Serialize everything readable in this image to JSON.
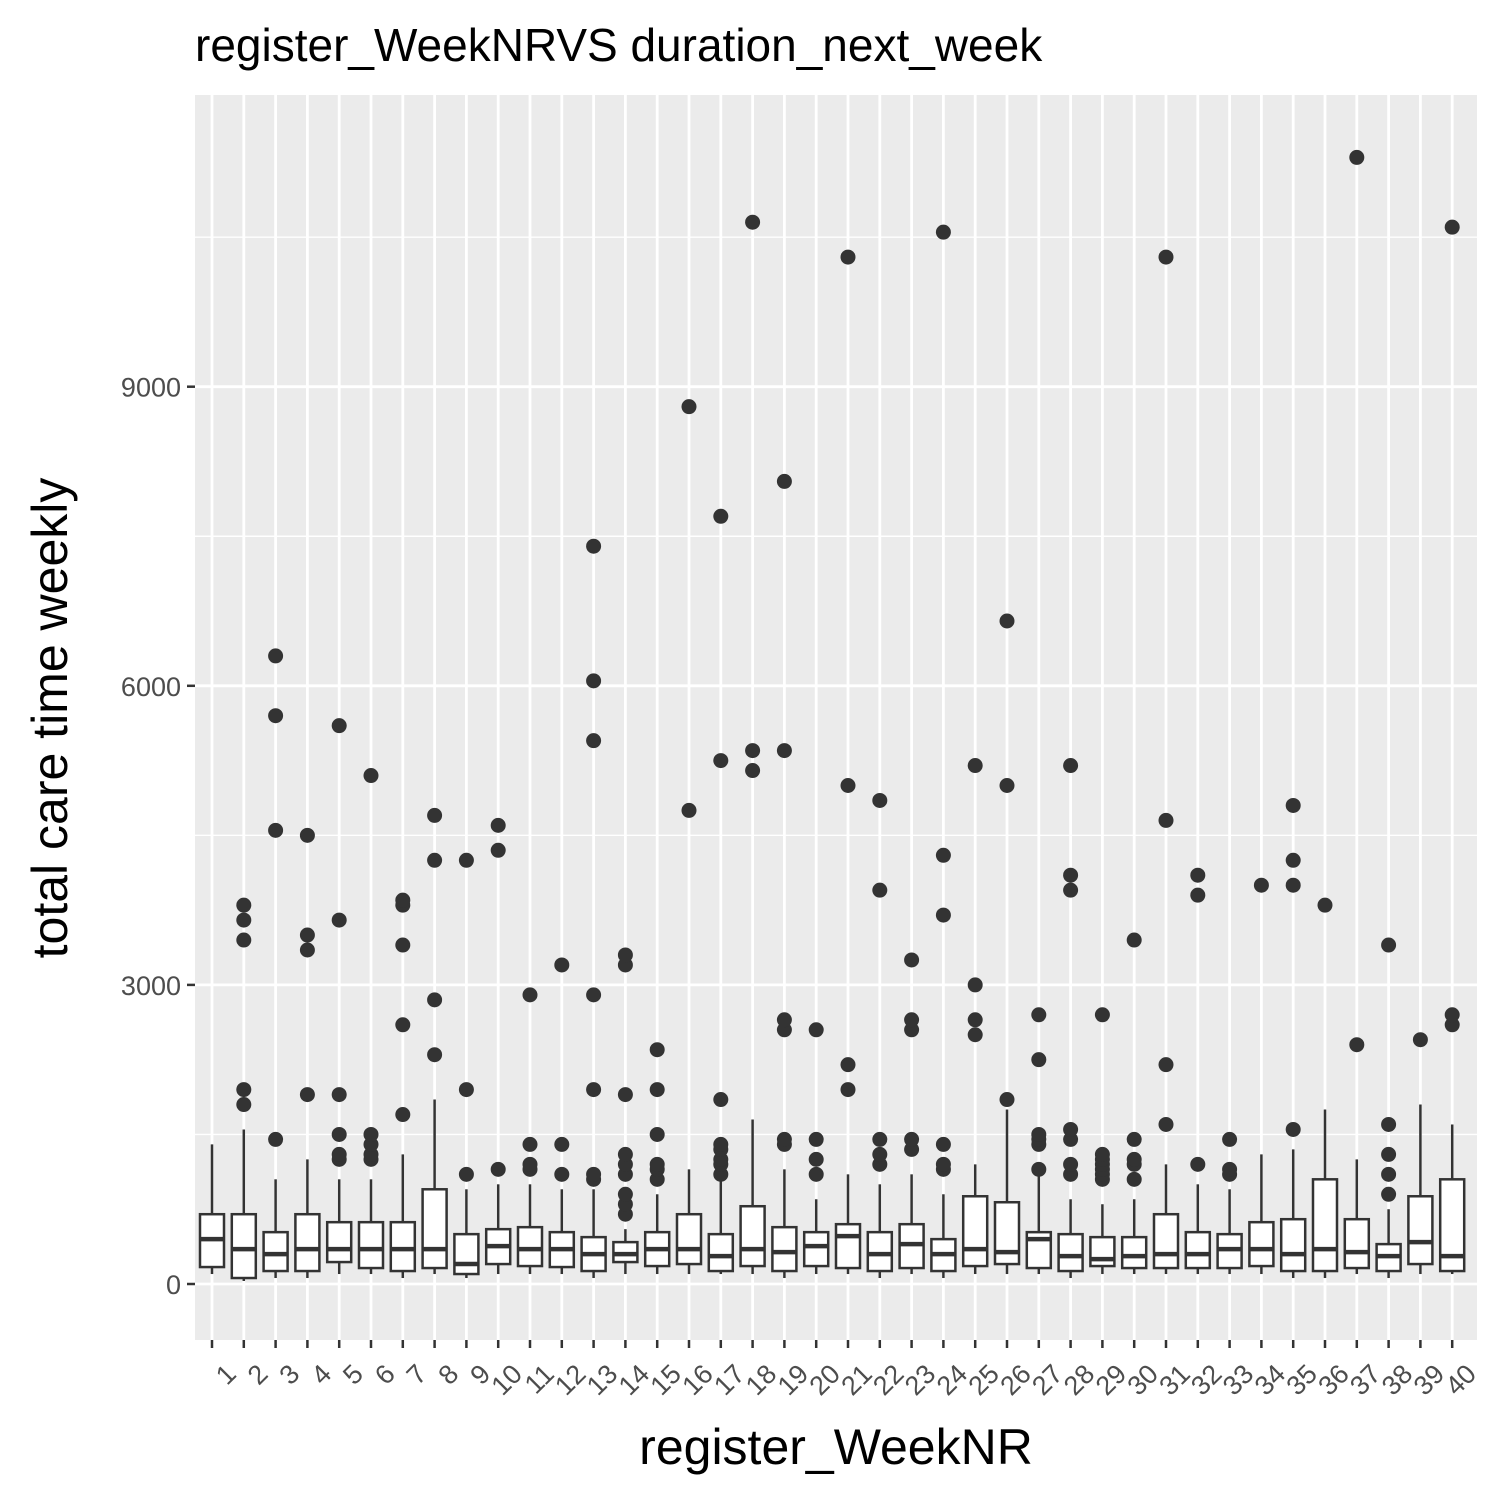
{
  "chart_data": {
    "type": "boxplot",
    "title": "register_WeekNRVS duration_next_week",
    "xlabel": "register_WeekNR",
    "ylabel": "total care time weekly",
    "ylim": [
      -520,
      11950
    ],
    "yticks": [
      0,
      3000,
      6000,
      9000
    ],
    "grid": true,
    "categories": [
      "1",
      "2",
      "3",
      "4",
      "5",
      "6",
      "7",
      "8",
      "9",
      "10",
      "11",
      "12",
      "13",
      "14",
      "15",
      "16",
      "17",
      "18",
      "19",
      "20",
      "21",
      "22",
      "23",
      "24",
      "25",
      "26",
      "27",
      "28",
      "29",
      "30",
      "31",
      "32",
      "33",
      "34",
      "35",
      "36",
      "37",
      "38",
      "39",
      "40"
    ],
    "boxes": [
      {
        "min": 100,
        "q1": 170,
        "median": 450,
        "q3": 700,
        "max": 1400,
        "outliers": []
      },
      {
        "min": 30,
        "q1": 60,
        "median": 350,
        "q3": 700,
        "max": 1550,
        "outliers": [
          1800,
          1950,
          3450,
          3650,
          3800
        ]
      },
      {
        "min": 60,
        "q1": 130,
        "median": 300,
        "q3": 520,
        "max": 1050,
        "outliers": [
          1450,
          4550,
          5700,
          6300
        ]
      },
      {
        "min": 60,
        "q1": 130,
        "median": 350,
        "q3": 700,
        "max": 1250,
        "outliers": [
          1900,
          3350,
          3500,
          4500
        ]
      },
      {
        "min": 100,
        "q1": 220,
        "median": 350,
        "q3": 620,
        "max": 1050,
        "outliers": [
          1250,
          1300,
          1500,
          1900,
          3650,
          5600
        ]
      },
      {
        "min": 100,
        "q1": 160,
        "median": 350,
        "q3": 620,
        "max": 1050,
        "outliers": [
          1250,
          1300,
          1400,
          1500,
          5100
        ]
      },
      {
        "min": 60,
        "q1": 130,
        "median": 350,
        "q3": 620,
        "max": 1300,
        "outliers": [
          1700,
          2600,
          3400,
          3800,
          3850
        ]
      },
      {
        "min": 100,
        "q1": 160,
        "median": 350,
        "q3": 950,
        "max": 1850,
        "outliers": [
          2300,
          2850,
          4250,
          4700
        ]
      },
      {
        "min": 60,
        "q1": 100,
        "median": 200,
        "q3": 500,
        "max": 950,
        "outliers": [
          1100,
          1950,
          4250
        ]
      },
      {
        "min": 100,
        "q1": 200,
        "median": 380,
        "q3": 550,
        "max": 1000,
        "outliers": [
          1150,
          4350,
          4600
        ]
      },
      {
        "min": 100,
        "q1": 180,
        "median": 350,
        "q3": 570,
        "max": 1000,
        "outliers": [
          1150,
          1200,
          1400,
          2900
        ]
      },
      {
        "min": 100,
        "q1": 170,
        "median": 350,
        "q3": 520,
        "max": 950,
        "outliers": [
          1100,
          1400,
          3200
        ]
      },
      {
        "min": 60,
        "q1": 130,
        "median": 300,
        "q3": 470,
        "max": 950,
        "outliers": [
          1050,
          1100,
          1950,
          2900,
          5450,
          6050,
          7400
        ]
      },
      {
        "min": 100,
        "q1": 220,
        "median": 300,
        "q3": 420,
        "max": 550,
        "outliers": [
          700,
          800,
          900,
          1100,
          1200,
          1300,
          1900,
          3200,
          3300
        ]
      },
      {
        "min": 100,
        "q1": 180,
        "median": 350,
        "q3": 520,
        "max": 900,
        "outliers": [
          1050,
          1150,
          1200,
          1500,
          1950,
          2350
        ]
      },
      {
        "min": 100,
        "q1": 200,
        "median": 350,
        "q3": 700,
        "max": 1150,
        "outliers": [
          4750,
          8800
        ]
      },
      {
        "min": 100,
        "q1": 130,
        "median": 280,
        "q3": 500,
        "max": 1050,
        "outliers": [
          1100,
          1200,
          1250,
          1350,
          1400,
          1850,
          5250,
          7700
        ]
      },
      {
        "min": 100,
        "q1": 180,
        "median": 350,
        "q3": 780,
        "max": 1650,
        "outliers": [
          5150,
          5350,
          10650
        ]
      },
      {
        "min": 60,
        "q1": 130,
        "median": 320,
        "q3": 570,
        "max": 1150,
        "outliers": [
          1400,
          1450,
          2550,
          2650,
          5350,
          8050
        ]
      },
      {
        "min": 100,
        "q1": 180,
        "median": 380,
        "q3": 520,
        "max": 850,
        "outliers": [
          1100,
          1250,
          1450,
          2550
        ]
      },
      {
        "min": 100,
        "q1": 160,
        "median": 480,
        "q3": 600,
        "max": 1100,
        "outliers": [
          1950,
          2200,
          5000,
          10300
        ]
      },
      {
        "min": 60,
        "q1": 130,
        "median": 300,
        "q3": 520,
        "max": 1000,
        "outliers": [
          1200,
          1300,
          1450,
          3950,
          4850
        ]
      },
      {
        "min": 100,
        "q1": 160,
        "median": 400,
        "q3": 600,
        "max": 1100,
        "outliers": [
          1350,
          1450,
          2550,
          2650,
          3250
        ]
      },
      {
        "min": 60,
        "q1": 130,
        "median": 300,
        "q3": 450,
        "max": 900,
        "outliers": [
          1150,
          1200,
          1400,
          3700,
          4300,
          10550
        ]
      },
      {
        "min": 100,
        "q1": 180,
        "median": 350,
        "q3": 880,
        "max": 1200,
        "outliers": [
          2500,
          2650,
          3000,
          5200
        ]
      },
      {
        "min": 100,
        "q1": 200,
        "median": 320,
        "q3": 820,
        "max": 1750,
        "outliers": [
          1850,
          5000,
          6650
        ]
      },
      {
        "min": 100,
        "q1": 160,
        "median": 450,
        "q3": 520,
        "max": 1100,
        "outliers": [
          1150,
          1400,
          1450,
          1500,
          2250,
          2700
        ]
      },
      {
        "min": 60,
        "q1": 130,
        "median": 280,
        "q3": 500,
        "max": 850,
        "outliers": [
          1100,
          1200,
          1450,
          1550,
          3950,
          4100,
          5200
        ]
      },
      {
        "min": 100,
        "q1": 180,
        "median": 250,
        "q3": 470,
        "max": 800,
        "outliers": [
          1050,
          1100,
          1150,
          1200,
          1250,
          1300,
          2700
        ]
      },
      {
        "min": 100,
        "q1": 160,
        "median": 280,
        "q3": 470,
        "max": 850,
        "outliers": [
          1050,
          1200,
          1250,
          1450,
          3450
        ]
      },
      {
        "min": 100,
        "q1": 160,
        "median": 300,
        "q3": 700,
        "max": 1200,
        "outliers": [
          1600,
          2200,
          4650,
          10300
        ]
      },
      {
        "min": 100,
        "q1": 160,
        "median": 300,
        "q3": 520,
        "max": 1000,
        "outliers": [
          1200,
          3900,
          4100
        ]
      },
      {
        "min": 100,
        "q1": 160,
        "median": 350,
        "q3": 500,
        "max": 950,
        "outliers": [
          1100,
          1150,
          1450
        ]
      },
      {
        "min": 100,
        "q1": 180,
        "median": 350,
        "q3": 620,
        "max": 1300,
        "outliers": [
          4000
        ]
      },
      {
        "min": 60,
        "q1": 130,
        "median": 300,
        "q3": 650,
        "max": 1350,
        "outliers": [
          1550,
          4000,
          4250,
          4800
        ]
      },
      {
        "min": 60,
        "q1": 130,
        "median": 350,
        "q3": 1050,
        "max": 1750,
        "outliers": [
          3800
        ]
      },
      {
        "min": 100,
        "q1": 160,
        "median": 320,
        "q3": 650,
        "max": 1250,
        "outliers": [
          2400,
          11300
        ]
      },
      {
        "min": 60,
        "q1": 130,
        "median": 280,
        "q3": 400,
        "max": 750,
        "outliers": [
          900,
          1100,
          1300,
          1600,
          3400
        ]
      },
      {
        "min": 100,
        "q1": 200,
        "median": 420,
        "q3": 880,
        "max": 1800,
        "outliers": [
          2450
        ]
      },
      {
        "min": 100,
        "q1": 130,
        "median": 280,
        "q3": 1050,
        "max": 1600,
        "outliers": [
          2600,
          2700,
          10600
        ]
      }
    ]
  }
}
